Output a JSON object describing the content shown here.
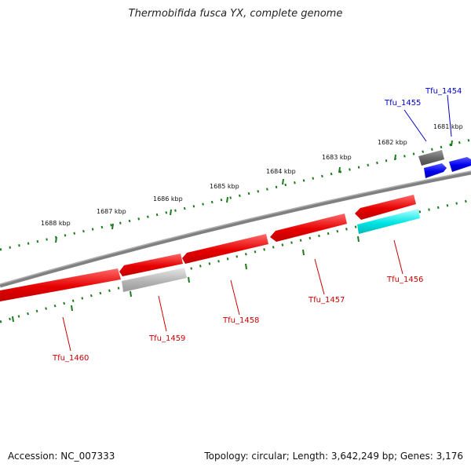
{
  "title": "Thermobifida fusca YX, complete genome",
  "accession": "Accession: NC_007333",
  "summary": "Topology: circular; Length: 3,642,249 bp; Genes: 3,176",
  "kbp_labels": [
    "1681 kbp",
    "1682 kbp",
    "1683 kbp",
    "1684 kbp",
    "1685 kbp",
    "1686 kbp",
    "1687 kbp",
    "1688 kbp"
  ],
  "genes": [
    {
      "label": "Tfu_1454",
      "strand": "forward",
      "color": "#0000ee"
    },
    {
      "label": "Tfu_1455",
      "strand": "forward",
      "color": "#666666"
    },
    {
      "label": "Tfu_1456",
      "strand": "reverse",
      "color": "#00e5e5"
    },
    {
      "label": "Tfu_1457",
      "strand": "reverse",
      "color": "#e60000"
    },
    {
      "label": "Tfu_1458",
      "strand": "reverse",
      "color": "#e60000"
    },
    {
      "label": "Tfu_1459",
      "strand": "reverse",
      "color": "#b5b5b5"
    },
    {
      "label": "Tfu_1460",
      "strand": "reverse",
      "color": "#e60000"
    }
  ],
  "colors": {
    "forward_label": "#0000cc",
    "reverse_label": "#cc0000",
    "backbone": "#808080",
    "tick": "#1b7a1b"
  }
}
